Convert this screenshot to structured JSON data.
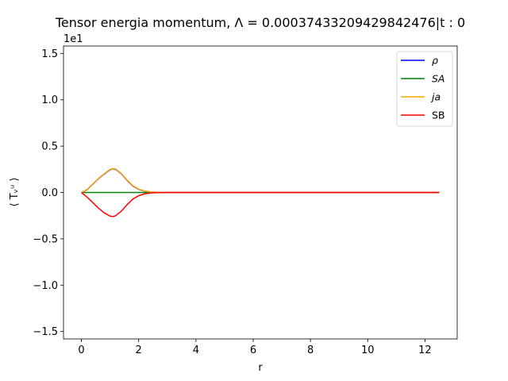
{
  "chart_data": {
    "type": "line",
    "title": "Tensor energia momentum, Λ = 0.00037433209429842476|t : 0",
    "xlabel": "r",
    "ylabel": "⟨ Tᵥᵘ ⟩",
    "offset_label": "1e1",
    "xlim": [
      -0.625,
      13.125
    ],
    "ylim": [
      -1.58,
      1.58
    ],
    "x_ticks": [
      0,
      2,
      4,
      6,
      8,
      10,
      12
    ],
    "x_tick_labels": [
      "0",
      "2",
      "4",
      "6",
      "8",
      "10",
      "12"
    ],
    "y_ticks": [
      -1.5,
      -1.0,
      -0.5,
      0.0,
      0.5,
      1.0,
      1.5
    ],
    "y_tick_labels": [
      "−1.5",
      "−1.0",
      "−0.5",
      "0.0",
      "0.5",
      "1.0",
      "1.5"
    ],
    "grid": false,
    "legend_position": "top-right",
    "x": [
      0,
      0.2,
      0.4,
      0.6,
      0.8,
      1.0,
      1.1,
      1.2,
      1.4,
      1.6,
      1.8,
      2.0,
      2.2,
      2.4,
      2.6,
      2.8,
      3.0,
      3.5,
      4,
      6,
      8,
      10,
      12,
      12.5
    ],
    "series": [
      {
        "name": "ρ",
        "color": "#0000ff",
        "values": [
          0,
          0.03,
          0.09,
          0.15,
          0.2,
          0.245,
          0.255,
          0.25,
          0.2,
          0.13,
          0.07,
          0.035,
          0.015,
          0.006,
          0.002,
          0.001,
          0,
          0,
          0,
          0,
          0,
          0,
          0,
          0
        ]
      },
      {
        "name": "SA",
        "color": "#008000",
        "values": [
          0,
          0,
          0,
          0,
          0,
          0,
          0,
          0,
          0,
          0,
          0,
          0,
          0,
          0,
          0,
          0,
          0,
          0,
          0,
          0,
          0,
          0,
          0,
          0
        ]
      },
      {
        "name": "ja",
        "color": "#ffa500",
        "values": [
          0,
          0.032,
          0.092,
          0.152,
          0.203,
          0.248,
          0.258,
          0.253,
          0.203,
          0.133,
          0.073,
          0.037,
          0.016,
          0.007,
          0.002,
          0.001,
          0,
          0,
          0,
          0,
          0,
          0,
          0,
          0
        ]
      },
      {
        "name": "SB",
        "color": "#ff0000",
        "values": [
          0,
          -0.05,
          -0.11,
          -0.17,
          -0.22,
          -0.255,
          -0.26,
          -0.25,
          -0.2,
          -0.13,
          -0.07,
          -0.035,
          -0.015,
          -0.006,
          -0.002,
          -0.001,
          0,
          0,
          0,
          0,
          0,
          0,
          0,
          0
        ]
      }
    ],
    "legend_labels": [
      "ρ",
      "SA",
      "ja",
      "SB"
    ]
  }
}
